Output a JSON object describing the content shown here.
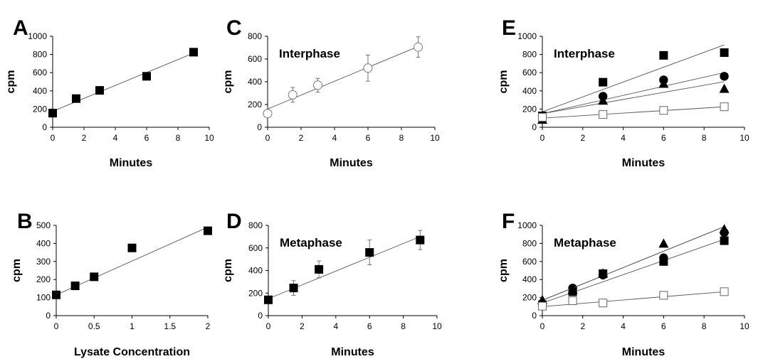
{
  "chart_data": [
    {
      "panel": "A",
      "type": "scatter",
      "title": "",
      "xlabel": "Minutes",
      "ylabel": "cpm",
      "xlim": [
        0,
        10
      ],
      "ylim": [
        0,
        1000
      ],
      "xticks": [
        0,
        2,
        4,
        6,
        8,
        10
      ],
      "yticks": [
        0,
        200,
        400,
        600,
        800,
        1000
      ],
      "series": [
        {
          "marker": "square-filled",
          "x": [
            0,
            1.5,
            3,
            6,
            9
          ],
          "y": [
            155,
            315,
            405,
            560,
            825
          ],
          "fit": [
            [
              0,
              175
            ],
            [
              9,
              815
            ]
          ]
        }
      ]
    },
    {
      "panel": "B",
      "type": "scatter",
      "title": "",
      "xlabel": "Lysate Concentration",
      "ylabel": "cpm",
      "xlim": [
        0,
        2
      ],
      "ylim": [
        0,
        500
      ],
      "xticks": [
        "0",
        "0.5",
        "1",
        "1.5",
        "2"
      ],
      "xtick_values": [
        0,
        0.5,
        1,
        1.5,
        2
      ],
      "yticks": [
        0,
        100,
        200,
        300,
        400,
        500
      ],
      "series": [
        {
          "marker": "square-filled",
          "x": [
            0,
            0.25,
            0.5,
            1,
            2
          ],
          "y": [
            115,
            165,
            215,
            375,
            470
          ],
          "fit": [
            [
              0,
              115
            ],
            [
              2,
              490
            ]
          ]
        }
      ]
    },
    {
      "panel": "C",
      "type": "scatter",
      "title": "Interphase",
      "xlabel": "Minutes",
      "ylabel": "cpm",
      "xlim": [
        0,
        10
      ],
      "ylim": [
        0,
        800
      ],
      "xticks": [
        0,
        2,
        4,
        6,
        8,
        10
      ],
      "yticks": [
        0,
        200,
        400,
        600,
        800
      ],
      "series": [
        {
          "marker": "circle-open",
          "x": [
            0,
            1.5,
            3,
            6,
            9
          ],
          "y": [
            120,
            285,
            370,
            520,
            705
          ],
          "err": [
            0,
            65,
            60,
            115,
            90
          ],
          "fit": [
            [
              0,
              160
            ],
            [
              9,
              710
            ]
          ]
        }
      ]
    },
    {
      "panel": "D",
      "type": "scatter",
      "title": "Metaphase",
      "xlabel": "Minutes",
      "ylabel": "cpm",
      "xlim": [
        0,
        10
      ],
      "ylim": [
        0,
        800
      ],
      "xticks": [
        0,
        2,
        4,
        6,
        8,
        10
      ],
      "yticks": [
        0,
        200,
        400,
        600,
        800
      ],
      "series": [
        {
          "marker": "square-filled",
          "x": [
            0,
            1.5,
            3,
            6,
            9
          ],
          "y": [
            140,
            245,
            410,
            560,
            670
          ],
          "err": [
            0,
            65,
            75,
            110,
            85
          ],
          "fit": [
            [
              0,
              150
            ],
            [
              9,
              700
            ]
          ]
        }
      ]
    },
    {
      "panel": "E",
      "type": "scatter",
      "title": "Interphase",
      "xlabel": "Minutes",
      "ylabel": "cpm",
      "xlim": [
        0,
        10
      ],
      "ylim": [
        0,
        1000
      ],
      "xticks": [
        0,
        2,
        4,
        6,
        8,
        10
      ],
      "yticks": [
        0,
        200,
        400,
        600,
        800,
        1000
      ],
      "series": [
        {
          "marker": "square-filled",
          "x": [
            0,
            3,
            6,
            9
          ],
          "y": [
            125,
            495,
            790,
            820
          ],
          "fit": [
            [
              0,
              170
            ],
            [
              9,
              905
            ]
          ]
        },
        {
          "marker": "circle-filled",
          "x": [
            0,
            3,
            6,
            9
          ],
          "y": [
            125,
            340,
            520,
            560
          ],
          "fit": [
            [
              0,
              150
            ],
            [
              9,
              600
            ]
          ]
        },
        {
          "marker": "triangle-filled",
          "x": [
            0,
            3,
            6,
            9
          ],
          "y": [
            85,
            295,
            480,
            425
          ],
          "fit": [
            [
              0,
              150
            ],
            [
              9,
              500
            ]
          ]
        },
        {
          "marker": "square-open",
          "x": [
            0,
            3,
            6,
            9
          ],
          "y": [
            110,
            140,
            185,
            225
          ],
          "fit": [
            [
              0,
              100
            ],
            [
              9,
              225
            ]
          ]
        }
      ]
    },
    {
      "panel": "F",
      "type": "scatter",
      "title": "Metaphase",
      "xlabel": "Minutes",
      "ylabel": "cpm",
      "xlim": [
        0,
        10
      ],
      "ylim": [
        0,
        1000
      ],
      "xticks": [
        0,
        2,
        4,
        6,
        8,
        10
      ],
      "yticks": [
        0,
        200,
        400,
        600,
        800,
        1000
      ],
      "series": [
        {
          "marker": "square-filled",
          "x": [
            0,
            1.5,
            3,
            6,
            9
          ],
          "y": [
            120,
            265,
            465,
            600,
            830
          ],
          "fit": [
            [
              0,
              140
            ],
            [
              9,
              845
            ]
          ]
        },
        {
          "marker": "circle-filled",
          "x": [
            0,
            1.5,
            3,
            6,
            9
          ],
          "y": [
            130,
            305,
            450,
            640,
            920
          ],
          "fit": [
            [
              0,
              170
            ],
            [
              9,
              985
            ]
          ]
        },
        {
          "marker": "triangle-filled",
          "x": [
            0,
            1.5,
            3,
            6,
            9
          ],
          "y": [
            175,
            290,
            470,
            800,
            960
          ],
          "fit": [
            [
              0,
              170
            ],
            [
              9,
              985
            ]
          ]
        },
        {
          "marker": "square-open",
          "x": [
            0,
            1.5,
            3,
            6,
            9
          ],
          "y": [
            105,
            165,
            140,
            225,
            265
          ],
          "fit": [
            [
              0,
              100
            ],
            [
              9,
              265
            ]
          ]
        }
      ]
    }
  ]
}
